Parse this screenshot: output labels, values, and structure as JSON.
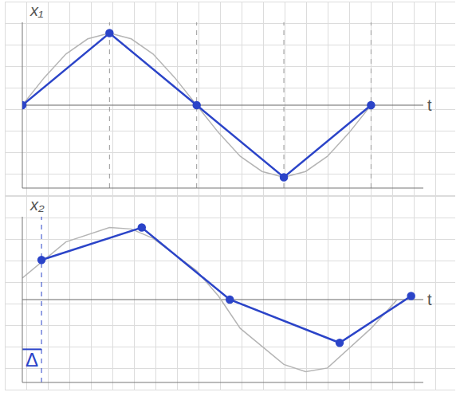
{
  "chart_data": [
    {
      "type": "line",
      "ylabel": "x₁",
      "xlabel": "t",
      "xlim": [
        0,
        4.6
      ],
      "ylim": [
        -1.15,
        1.15
      ],
      "xticks": [],
      "yticks": [],
      "tick_labels": false,
      "grid": true,
      "vlines": [
        1,
        2,
        3,
        4
      ],
      "series": [
        {
          "color": "#b5b5b5",
          "marker": "none",
          "line_style": "solid",
          "x": [
            0,
            0.25,
            0.5,
            0.75,
            1,
            1.25,
            1.5,
            1.75,
            2,
            2.25,
            2.5,
            2.75,
            3,
            3.25,
            3.5,
            3.75,
            4
          ],
          "values": [
            0,
            0.38,
            0.71,
            0.92,
            1,
            0.92,
            0.71,
            0.38,
            0,
            -0.38,
            -0.71,
            -0.92,
            -1,
            -0.92,
            -0.71,
            -0.38,
            0
          ]
        },
        {
          "color": "#2b44c8",
          "marker": "circle",
          "line_style": "solid",
          "x": [
            0,
            1,
            2,
            3,
            4
          ],
          "values": [
            0,
            1,
            0,
            -1,
            0
          ]
        }
      ]
    },
    {
      "type": "line",
      "ylabel": "x₂",
      "xlabel": "t",
      "xlim": [
        0,
        4.6
      ],
      "ylim": [
        -1.15,
        1.15
      ],
      "xticks": [],
      "yticks": [],
      "tick_labels": false,
      "grid": true,
      "annotations": [
        {
          "text": "Δ",
          "x_start": 0,
          "x_end": 0.22
        }
      ],
      "series": [
        {
          "color": "#b5b5b5",
          "marker": "none",
          "line_style": "solid",
          "x": [
            0,
            0.5,
            1,
            1.25,
            1.5,
            2,
            2.25,
            2.5,
            3,
            3.25,
            3.5,
            4,
            4.3
          ],
          "values": [
            0.3,
            0.8,
            1,
            0.98,
            0.85,
            0.4,
            0.05,
            -0.4,
            -0.9,
            -1,
            -0.95,
            -0.4,
            0
          ]
        },
        {
          "color": "#2b44c8",
          "marker": "circle",
          "line_style": "solid",
          "x": [
            0.22,
            1.37,
            2.38,
            3.64,
            4.46
          ],
          "values": [
            0.55,
            1,
            0,
            -0.6,
            0.05
          ]
        }
      ]
    }
  ]
}
